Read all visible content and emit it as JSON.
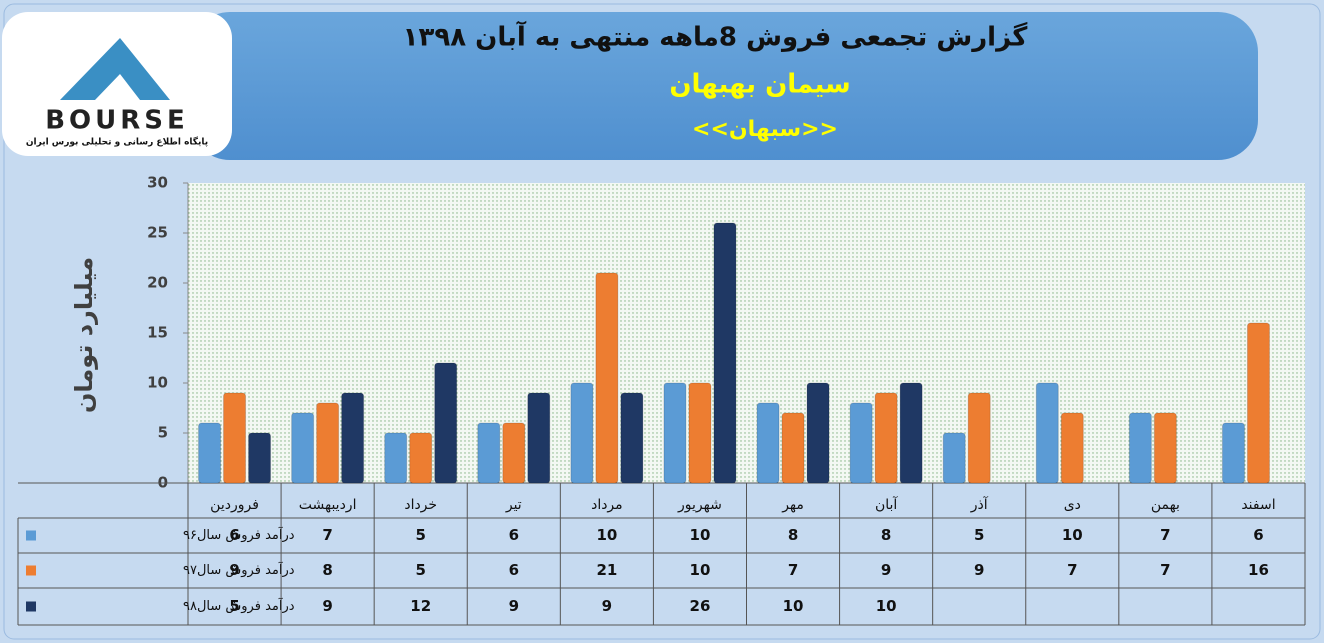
{
  "logo": {
    "text": "BOURSE",
    "tagline": "پایگاه اطلاع رسانی و تحلیلی بورس ایران"
  },
  "chart_data": {
    "type": "bar",
    "title": "گزارش تجمعی فروش  8ماهه منتهی به آبان ۱۳۹۸",
    "subtitle": "سیمان بهبهان",
    "symbol": "<<سبهان>>",
    "ylabel": "میلیارد تومان",
    "categories": [
      "فروردین",
      "اردیبهشت",
      "خرداد",
      "تیر",
      "مرداد",
      "شهریور",
      "مهر",
      "آبان",
      "آذر",
      "دی",
      "بهمن",
      "اسفند"
    ],
    "series": [
      {
        "name": "درآمد فروش سال۹۶",
        "color": "#5b9bd5",
        "values": [
          6,
          7,
          5,
          6,
          10,
          10,
          8,
          8,
          5,
          10,
          7,
          6
        ]
      },
      {
        "name": "درآمد فروش سال۹۷",
        "color": "#ed7d31",
        "values": [
          9,
          8,
          5,
          6,
          21,
          10,
          7,
          9,
          9,
          7,
          7,
          16
        ]
      },
      {
        "name": "درآمد فروش سال۹۸",
        "color": "#1f3864",
        "values": [
          5,
          9,
          12,
          9,
          9,
          26,
          10,
          10,
          null,
          null,
          null,
          null
        ]
      }
    ],
    "ylim": [
      0,
      30
    ],
    "yticks": [
      0,
      5,
      10,
      15,
      20,
      25,
      30
    ]
  }
}
